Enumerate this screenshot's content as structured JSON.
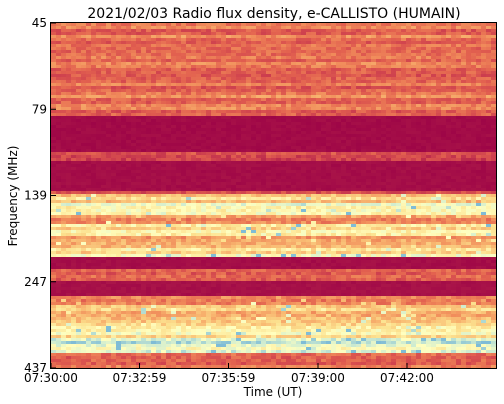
{
  "chart_data": {
    "type": "heatmap",
    "title": "2021/02/03  Radio flux density, e-CALLISTO (HUMAIN)",
    "xlabel": "Time (UT)",
    "ylabel": "Frequency (MHz)",
    "x_ticks": [
      "07:30:00",
      "07:32:59",
      "07:35:59",
      "07:39:00",
      "07:42:00"
    ],
    "y_ticks": [
      "45",
      "79",
      "139",
      "247",
      "437"
    ],
    "xlim": [
      "07:30:00",
      "07:45:00"
    ],
    "ylim": [
      45,
      437
    ],
    "y_axis_inverted": true,
    "colormap": [
      "#9a0046",
      "#b11e4a",
      "#cd3e4e",
      "#e2604f",
      "#f08a5a",
      "#f8b670",
      "#fce08e",
      "#ffffbf",
      "#cfecd0",
      "#7fbcd6"
    ],
    "intensity_bands": [
      {
        "freq_range": [
          45,
          79
        ],
        "level": 0.38
      },
      {
        "freq_range": [
          79,
          83
        ],
        "level": 0.25
      },
      {
        "freq_range": [
          83,
          108
        ],
        "level": 0.02
      },
      {
        "freq_range": [
          108,
          115
        ],
        "level": 0.3
      },
      {
        "freq_range": [
          115,
          135
        ],
        "level": 0.03
      },
      {
        "freq_range": [
          135,
          139
        ],
        "level": 0.25
      },
      {
        "freq_range": [
          139,
          150
        ],
        "level": 0.6
      },
      {
        "freq_range": [
          150,
          162
        ],
        "level": 0.82
      },
      {
        "freq_range": [
          162,
          175
        ],
        "level": 0.5
      },
      {
        "freq_range": [
          175,
          188
        ],
        "level": 0.68
      },
      {
        "freq_range": [
          188,
          205
        ],
        "level": 0.55
      },
      {
        "freq_range": [
          205,
          215
        ],
        "level": 0.7
      },
      {
        "freq_range": [
          215,
          232
        ],
        "level": 0.03
      },
      {
        "freq_range": [
          232,
          247
        ],
        "level": 0.35
      },
      {
        "freq_range": [
          247,
          280
        ],
        "level": 0.04
      },
      {
        "freq_range": [
          280,
          300
        ],
        "level": 0.45
      },
      {
        "freq_range": [
          300,
          340
        ],
        "level": 0.6
      },
      {
        "freq_range": [
          340,
          370
        ],
        "level": 0.72
      },
      {
        "freq_range": [
          370,
          405
        ],
        "level": 0.85
      },
      {
        "freq_range": [
          405,
          437
        ],
        "level": 0.35
      }
    ]
  }
}
